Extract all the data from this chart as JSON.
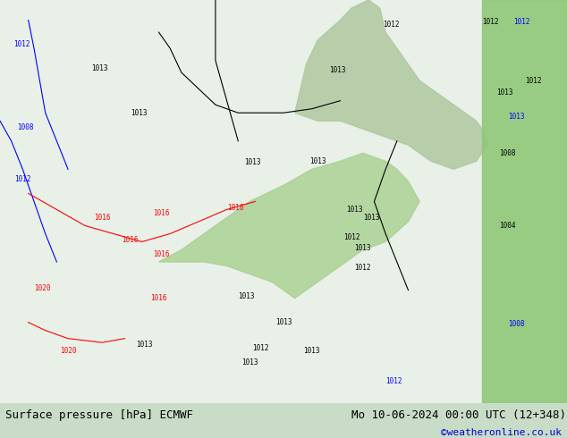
{
  "title_left": "Surface pressure [hPa] ECMWF",
  "title_right": "Mo 10-06-2024 00:00 UTC (12+348)",
  "watermark": "©weatheronline.co.uk",
  "watermark_color": "#0000cc",
  "bg_color": "#e8f4e8",
  "map_bg": "#c8e6c8",
  "fig_width": 6.34,
  "fig_height": 4.9,
  "dpi": 100,
  "bottom_bar_color": "#d0d0d0",
  "bottom_bar_height": 0.08,
  "title_fontsize": 9,
  "watermark_fontsize": 8
}
